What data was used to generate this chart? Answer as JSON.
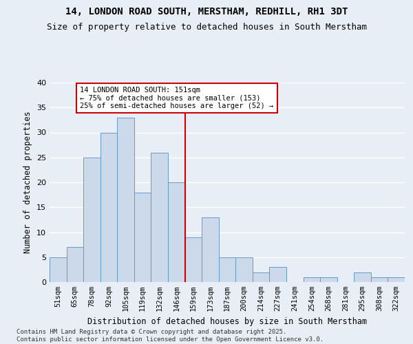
{
  "title1": "14, LONDON ROAD SOUTH, MERSTHAM, REDHILL, RH1 3DT",
  "title2": "Size of property relative to detached houses in South Merstham",
  "xlabel": "Distribution of detached houses by size in South Merstham",
  "ylabel": "Number of detached properties",
  "categories": [
    "51sqm",
    "65sqm",
    "78sqm",
    "92sqm",
    "105sqm",
    "119sqm",
    "132sqm",
    "146sqm",
    "159sqm",
    "173sqm",
    "187sqm",
    "200sqm",
    "214sqm",
    "227sqm",
    "241sqm",
    "254sqm",
    "268sqm",
    "281sqm",
    "295sqm",
    "308sqm",
    "322sqm"
  ],
  "values": [
    5,
    7,
    25,
    30,
    33,
    18,
    26,
    20,
    9,
    13,
    5,
    5,
    2,
    3,
    0,
    1,
    1,
    0,
    2,
    1,
    1
  ],
  "bar_color": "#ccd9ea",
  "bar_edge_color": "#6699cc",
  "vline_bar_index": 7,
  "annotation_title": "14 LONDON ROAD SOUTH: 151sqm",
  "annotation_line1": "← 75% of detached houses are smaller (153)",
  "annotation_line2": "25% of semi-detached houses are larger (52) →",
  "annotation_box_color": "#ffffff",
  "annotation_box_edge": "#cc0000",
  "vline_color": "#cc0000",
  "ylim": [
    0,
    40
  ],
  "yticks": [
    0,
    5,
    10,
    15,
    20,
    25,
    30,
    35,
    40
  ],
  "footer1": "Contains HM Land Registry data © Crown copyright and database right 2025.",
  "footer2": "Contains public sector information licensed under the Open Government Licence v3.0.",
  "background_color": "#e8eef5",
  "plot_background": "#e8eef5",
  "grid_color": "#ffffff"
}
